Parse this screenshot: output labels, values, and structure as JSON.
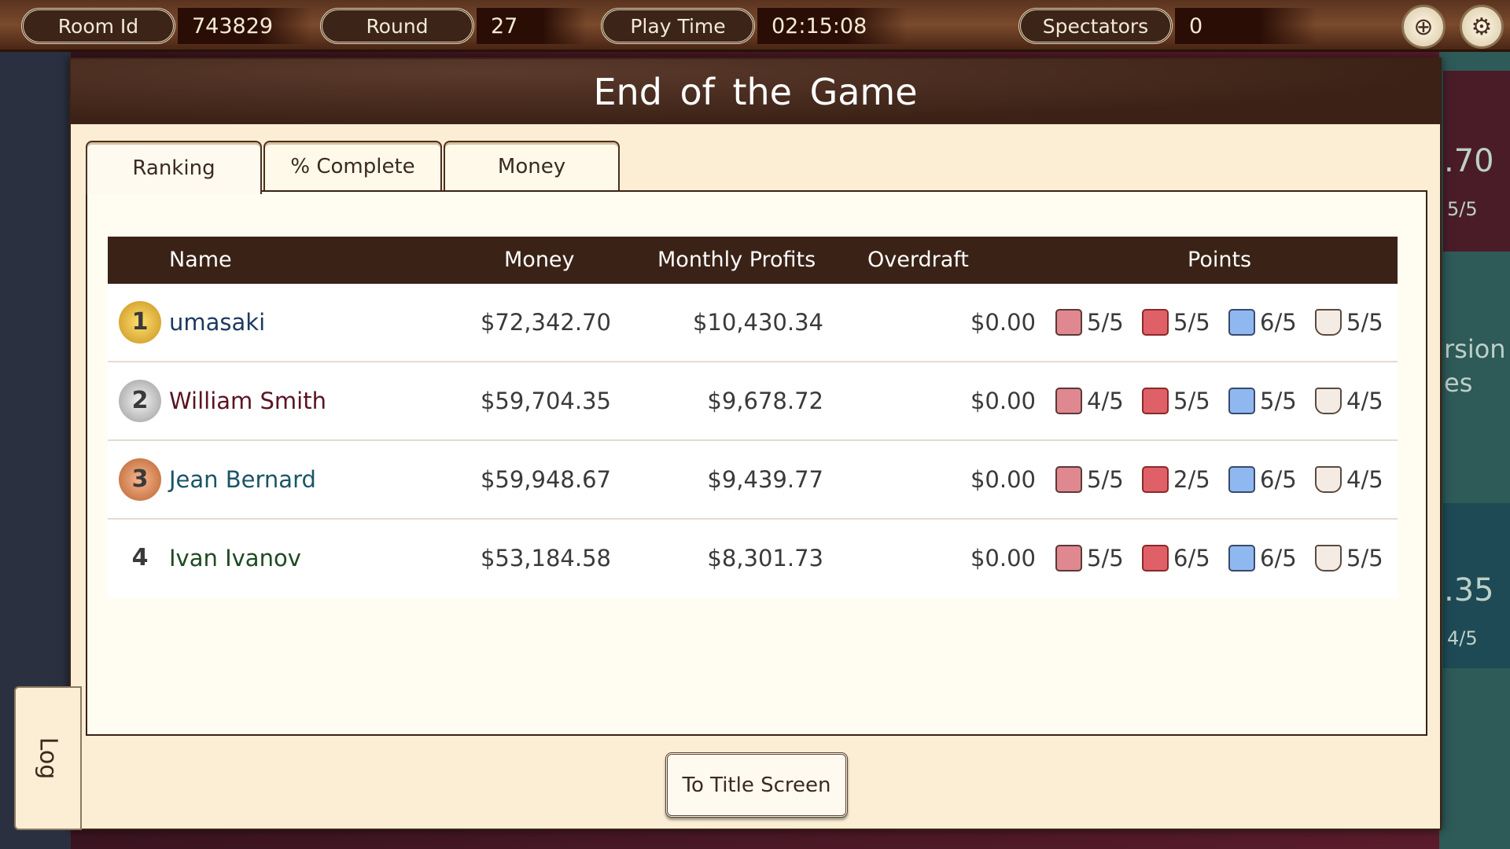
{
  "topbar": {
    "room_label": "Room Id",
    "room_value": "743829",
    "round_label": "Round",
    "round_value": "27",
    "playtime_label": "Play Time",
    "playtime_value": "02:15:08",
    "spectators_label": "Spectators",
    "spectators_value": "0"
  },
  "modal": {
    "title": "End of the Game",
    "tabs": [
      "Ranking",
      "% Complete",
      "Money"
    ],
    "active_tab": "Ranking"
  },
  "table": {
    "headers": [
      "Name",
      "Money",
      "Monthly Profits",
      "Overdraft",
      "Points"
    ],
    "rows": [
      {
        "rank": "1",
        "name": "umasaki",
        "name_color": "#1c3a60",
        "money": "$72,342.70",
        "profits": "$10,430.34",
        "overdraft": "$0.00",
        "points": [
          "5/5",
          "5/5",
          "6/5",
          "5/5"
        ]
      },
      {
        "rank": "2",
        "name": "William Smith",
        "name_color": "#5a1424",
        "money": "$59,704.35",
        "profits": "$9,678.72",
        "overdraft": "$0.00",
        "points": [
          "4/5",
          "5/5",
          "5/5",
          "4/5"
        ]
      },
      {
        "rank": "3",
        "name": "Jean Bernard",
        "name_color": "#1a5468",
        "money": "$59,948.67",
        "profits": "$9,439.77",
        "overdraft": "$0.00",
        "points": [
          "5/5",
          "2/5",
          "6/5",
          "4/5"
        ]
      },
      {
        "rank": "4",
        "name": "Ivan Ivanov",
        "name_color": "#1e4a22",
        "money": "$53,184.58",
        "profits": "$8,301.73",
        "overdraft": "$0.00",
        "points": [
          "5/5",
          "6/5",
          "6/5",
          "5/5"
        ]
      }
    ],
    "point_icons": [
      "box-icon",
      "monitor-gears-icon",
      "presenter-chart-icon",
      "flask-icon"
    ]
  },
  "button": {
    "title_screen": "To Title Screen"
  },
  "log": {
    "label": "Log"
  },
  "background": {
    "right_values": [
      ".70",
      "5/5",
      "rsion",
      "es",
      ".35",
      "4/5"
    ]
  }
}
